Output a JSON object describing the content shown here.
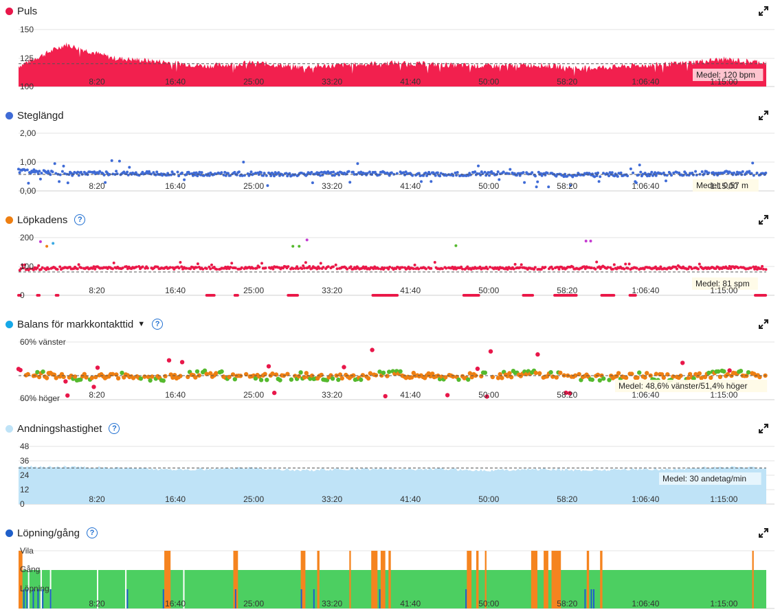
{
  "chart_data": [
    {
      "type": "area",
      "title": "Puls",
      "color": "#f2204e",
      "y_ticks": [
        "150",
        "125",
        "100"
      ],
      "ylim": [
        100,
        150
      ],
      "x_ticks": [
        "8:20",
        "16:40",
        "25:00",
        "33:20",
        "41:40",
        "50:00",
        "58:20",
        "1:06:40",
        "1:15:00"
      ],
      "average": {
        "value": 120,
        "label": "Medel: 120 bpm"
      },
      "series": [
        {
          "x_seconds": [
            0,
            300,
            600,
            900,
            1200,
            1500,
            1800,
            2100,
            2400,
            2700,
            3000,
            3300,
            3600,
            3900,
            4200,
            4500,
            4770
          ],
          "values": [
            118,
            137,
            125,
            122,
            118,
            121,
            117,
            119,
            121,
            119,
            118,
            119,
            116,
            118,
            120,
            124,
            121
          ]
        }
      ]
    },
    {
      "type": "scatter",
      "title": "Steglängd",
      "color": "#3f6bd6",
      "y_ticks": [
        "2,00",
        "1,00",
        "0,00"
      ],
      "ylim": [
        0,
        2
      ],
      "x_ticks": [
        "8:20",
        "16:40",
        "25:00",
        "33:20",
        "41:40",
        "50:00",
        "58:20",
        "1:06:40",
        "1:15:00"
      ],
      "average": {
        "value": 0.57,
        "label": "Medel: 0,57 m"
      },
      "series": [
        {
          "x_seconds": [
            0,
            300,
            600,
            900,
            1200,
            1500,
            1800,
            2100,
            2400,
            2700,
            3000,
            3300,
            3600,
            3900,
            4200,
            4500,
            4770
          ],
          "values": [
            0.7,
            0.6,
            0.62,
            0.6,
            0.58,
            0.6,
            0.57,
            0.62,
            0.6,
            0.58,
            0.6,
            0.58,
            0.55,
            0.58,
            0.6,
            0.62,
            0.6
          ]
        }
      ]
    },
    {
      "type": "scatter",
      "title": "Löpkadens",
      "color": "#ea1848",
      "y_ticks": [
        "200",
        "100",
        "0"
      ],
      "ylim": [
        0,
        200
      ],
      "x_ticks": [
        "8:20",
        "16:40",
        "25:00",
        "33:20",
        "41:40",
        "50:00",
        "58:20",
        "1:06:40",
        "1:15:00"
      ],
      "average": {
        "value": 81,
        "label": "Medel: 81 spm"
      },
      "series": [
        {
          "x_seconds": [
            0,
            300,
            600,
            900,
            1200,
            1500,
            1800,
            2100,
            2400,
            2700,
            3000,
            3300,
            3600,
            3900,
            4200,
            4500,
            4770
          ],
          "values": [
            90,
            95,
            96,
            95,
            94,
            95,
            96,
            95,
            94,
            95,
            94,
            93,
            95,
            94,
            95,
            96,
            94
          ]
        }
      ]
    },
    {
      "type": "scatter",
      "title": "Balans för markkontakttid",
      "color": "#16a8e8",
      "y_ticks": [
        "60% vänster",
        "60% höger"
      ],
      "ylim": [
        -10,
        10
      ],
      "x_ticks": [
        "8:20",
        "16:40",
        "25:00",
        "33:20",
        "41:40",
        "50:00",
        "58:20",
        "1:06:40",
        "1:15:00"
      ],
      "average": {
        "value": 0,
        "label": "Medel: 48,6% vänster/51,4% höger"
      },
      "series": [
        {
          "x_seconds": [
            0,
            300,
            600,
            900,
            1200,
            1500,
            1800,
            2100,
            2400,
            2700,
            3000,
            3300,
            3600,
            3900,
            4200,
            4500,
            4770
          ],
          "values": [
            2,
            -1,
            0,
            -1,
            1,
            -1,
            0,
            -1,
            1,
            -1,
            0,
            1,
            -1,
            0,
            -1,
            1,
            0
          ]
        }
      ]
    },
    {
      "type": "area",
      "title": "Andningshastighet",
      "color": "#bfe3f7",
      "y_ticks": [
        "48",
        "36",
        "24",
        "12",
        "0"
      ],
      "ylim": [
        0,
        48
      ],
      "x_ticks": [
        "8:20",
        "16:40",
        "25:00",
        "33:20",
        "41:40",
        "50:00",
        "58:20",
        "1:06:40",
        "1:15:00"
      ],
      "average": {
        "value": 30,
        "label": "Medel: 30 andetag/min"
      },
      "series": [
        {
          "x_seconds": [
            0,
            300,
            600,
            900,
            1200,
            1500,
            1800,
            2100,
            2400,
            2700,
            3000,
            3300,
            3600,
            3900,
            4200,
            4500,
            4770
          ],
          "values": [
            31,
            31,
            30,
            29,
            29,
            30,
            28,
            29,
            29,
            29,
            28,
            29,
            28,
            29,
            29,
            31,
            30
          ]
        }
      ]
    },
    {
      "type": "bar",
      "title": "Löpning/gång",
      "color": "#1f5fc9",
      "y_ticks": [
        "Vila",
        "Gång",
        "Löpning"
      ],
      "x_ticks": [
        "8:20",
        "16:40",
        "25:00",
        "33:20",
        "41:40",
        "50:00",
        "58:20",
        "1:06:40",
        "1:15:00"
      ],
      "colors": {
        "Vila": "#f5841f",
        "Gång": "#4ccf61",
        "Löpning": "#1f5fc9"
      }
    }
  ]
}
